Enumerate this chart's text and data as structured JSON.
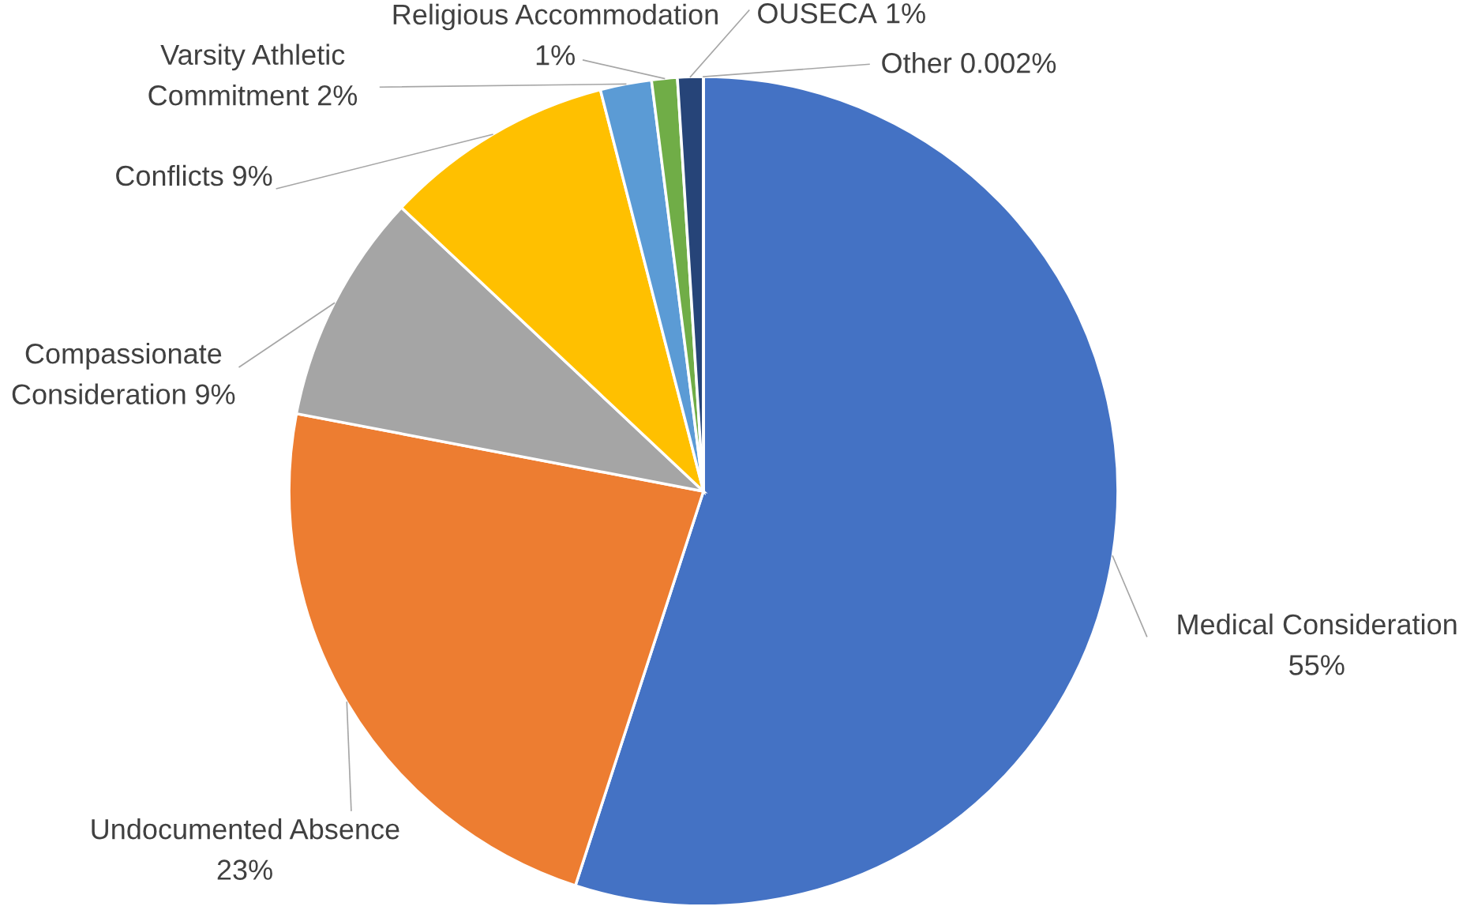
{
  "chart_data": {
    "type": "pie",
    "categories": [
      "Medical Consideration",
      "Undocumented Absence",
      "Compassionate Consideration",
      "Conflicts",
      "Varsity Athletic Commitment",
      "Religious Accommodation",
      "OUSECA",
      "Other"
    ],
    "values": [
      55,
      23,
      9,
      9,
      2,
      1,
      1,
      0.002
    ],
    "colors": [
      "#4472c4",
      "#ed7d31",
      "#a5a5a5",
      "#ffc000",
      "#5b9bd5",
      "#70ad47",
      "#264478",
      "#9e480e"
    ],
    "value_labels": [
      "55%",
      "23%",
      "9%",
      "9%",
      "2%",
      "1%",
      "1%",
      "0.002%"
    ]
  }
}
